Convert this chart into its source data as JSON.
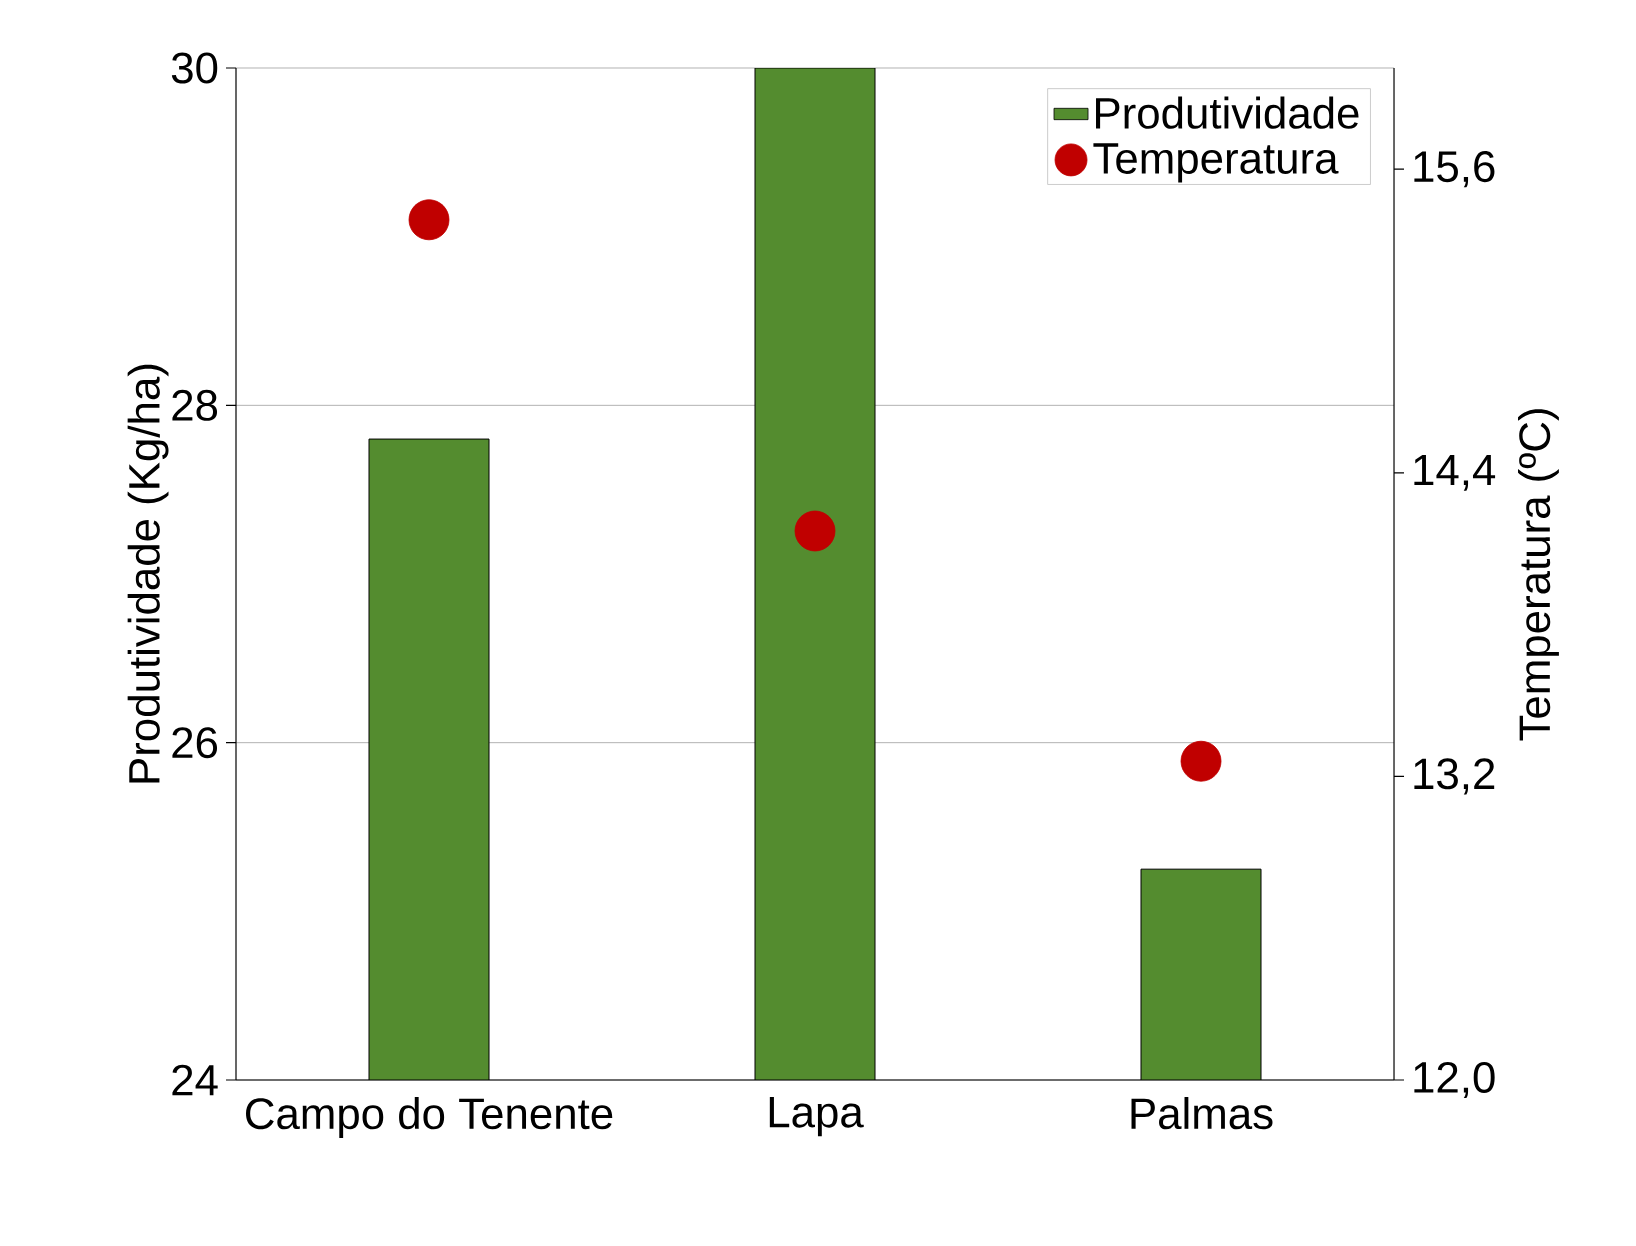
{
  "chart_data": {
    "type": "bar",
    "categories": [
      "Campo do Tenente",
      "Lapa",
      "Palmas"
    ],
    "series": [
      {
        "name": "Produtividade",
        "color": "#548c2f",
        "values": [
          27.8,
          30,
          25.25
        ]
      },
      {
        "name": "Temperatura",
        "type": "scatter",
        "axis": "y2",
        "color": "#c00000",
        "values": [
          15.4,
          14.17,
          13.26
        ]
      }
    ],
    "ylabel": "Produtividade (Kg/ha)",
    "y2label": "Temperatura (ºC)",
    "ylim": [
      24,
      30
    ],
    "yticks": [
      24,
      26,
      28,
      30
    ],
    "y2lim": [
      12,
      16
    ],
    "y2ticks": [
      {
        "value": 12,
        "label": "12,0"
      },
      {
        "value": 13.2,
        "label": "13,2"
      },
      {
        "value": 14.4,
        "label": "14,4"
      },
      {
        "value": 15.6,
        "label": "15,6"
      }
    ],
    "grid": "y",
    "legend": "top right"
  }
}
